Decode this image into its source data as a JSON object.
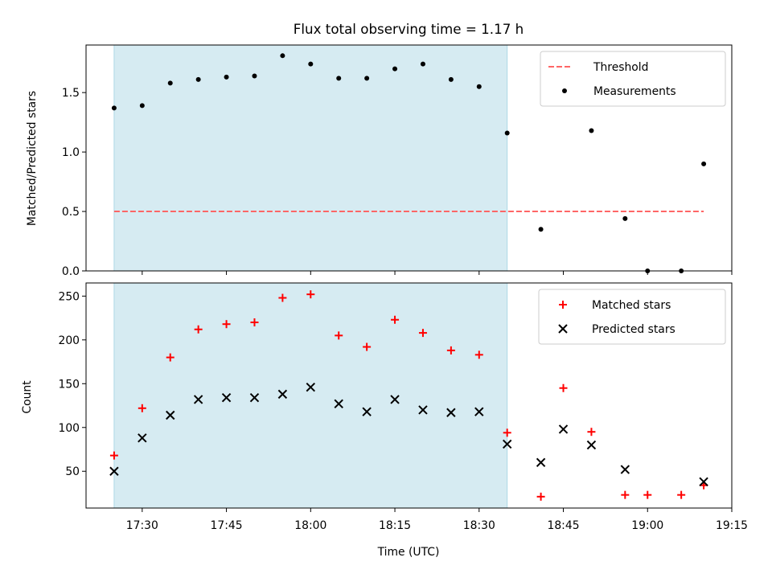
{
  "chart_data": {
    "title": "Flux total observing time = 1.17 h",
    "xlabel": "Time (UTC)",
    "x_ticks": [
      "17:30",
      "17:45",
      "18:00",
      "18:15",
      "18:30",
      "18:45",
      "19:00",
      "19:15"
    ],
    "xlim": [
      "17:20",
      "19:15"
    ],
    "shaded_span": {
      "start": "17:25",
      "end": "18:35",
      "color": "#add8e6"
    },
    "panels": [
      {
        "type": "scatter",
        "ylabel": "Matched/Predicted stars",
        "ylim": [
          0,
          1.9
        ],
        "y_ticks": [
          "0.0",
          "0.5",
          "1.0",
          "1.5"
        ],
        "legend_position": "top-right",
        "series": [
          {
            "name": "Threshold",
            "kind": "dashed-line",
            "color": "#ff6666",
            "x": [
              "17:25",
              "19:10"
            ],
            "y": [
              0.5,
              0.5
            ]
          },
          {
            "name": "Measurements",
            "kind": "dot",
            "color": "#000000",
            "x": [
              "17:25",
              "17:30",
              "17:35",
              "17:40",
              "17:45",
              "17:50",
              "17:55",
              "18:00",
              "18:05",
              "18:10",
              "18:15",
              "18:20",
              "18:25",
              "18:30",
              "18:35",
              "18:41",
              "18:50",
              "18:56",
              "19:00",
              "19:06",
              "19:10"
            ],
            "y": [
              1.37,
              1.39,
              1.58,
              1.61,
              1.63,
              1.64,
              1.81,
              1.74,
              1.62,
              1.62,
              1.7,
              1.74,
              1.61,
              1.55,
              1.16,
              0.35,
              1.18,
              0.44,
              0.0,
              0.0,
              0.9
            ]
          }
        ]
      },
      {
        "type": "scatter",
        "ylabel": "Count",
        "ylim": [
          8,
          265
        ],
        "y_ticks": [
          "50",
          "100",
          "150",
          "200",
          "250"
        ],
        "legend_position": "top-right",
        "series": [
          {
            "name": "Matched stars",
            "kind": "plus",
            "color": "#ff0000",
            "x": [
              "17:25",
              "17:30",
              "17:35",
              "17:40",
              "17:45",
              "17:50",
              "17:55",
              "18:00",
              "18:05",
              "18:10",
              "18:15",
              "18:20",
              "18:25",
              "18:30",
              "18:35",
              "18:41",
              "18:45",
              "18:50",
              "18:56",
              "19:00",
              "19:06",
              "19:10"
            ],
            "y": [
              68,
              122,
              180,
              212,
              218,
              220,
              248,
              252,
              205,
              192,
              223,
              208,
              188,
              183,
              94,
              21,
              145,
              95,
              23,
              23,
              23,
              34
            ]
          },
          {
            "name": "Predicted stars",
            "kind": "x",
            "color": "#000000",
            "x": [
              "17:25",
              "17:30",
              "17:35",
              "17:40",
              "17:45",
              "17:50",
              "17:55",
              "18:00",
              "18:05",
              "18:10",
              "18:15",
              "18:20",
              "18:25",
              "18:30",
              "18:35",
              "18:41",
              "18:45",
              "18:50",
              "18:56",
              "19:10"
            ],
            "y": [
              50,
              88,
              114,
              132,
              134,
              134,
              138,
              146,
              127,
              118,
              132,
              120,
              117,
              118,
              81,
              60,
              98,
              80,
              52,
              38
            ]
          }
        ]
      }
    ]
  }
}
